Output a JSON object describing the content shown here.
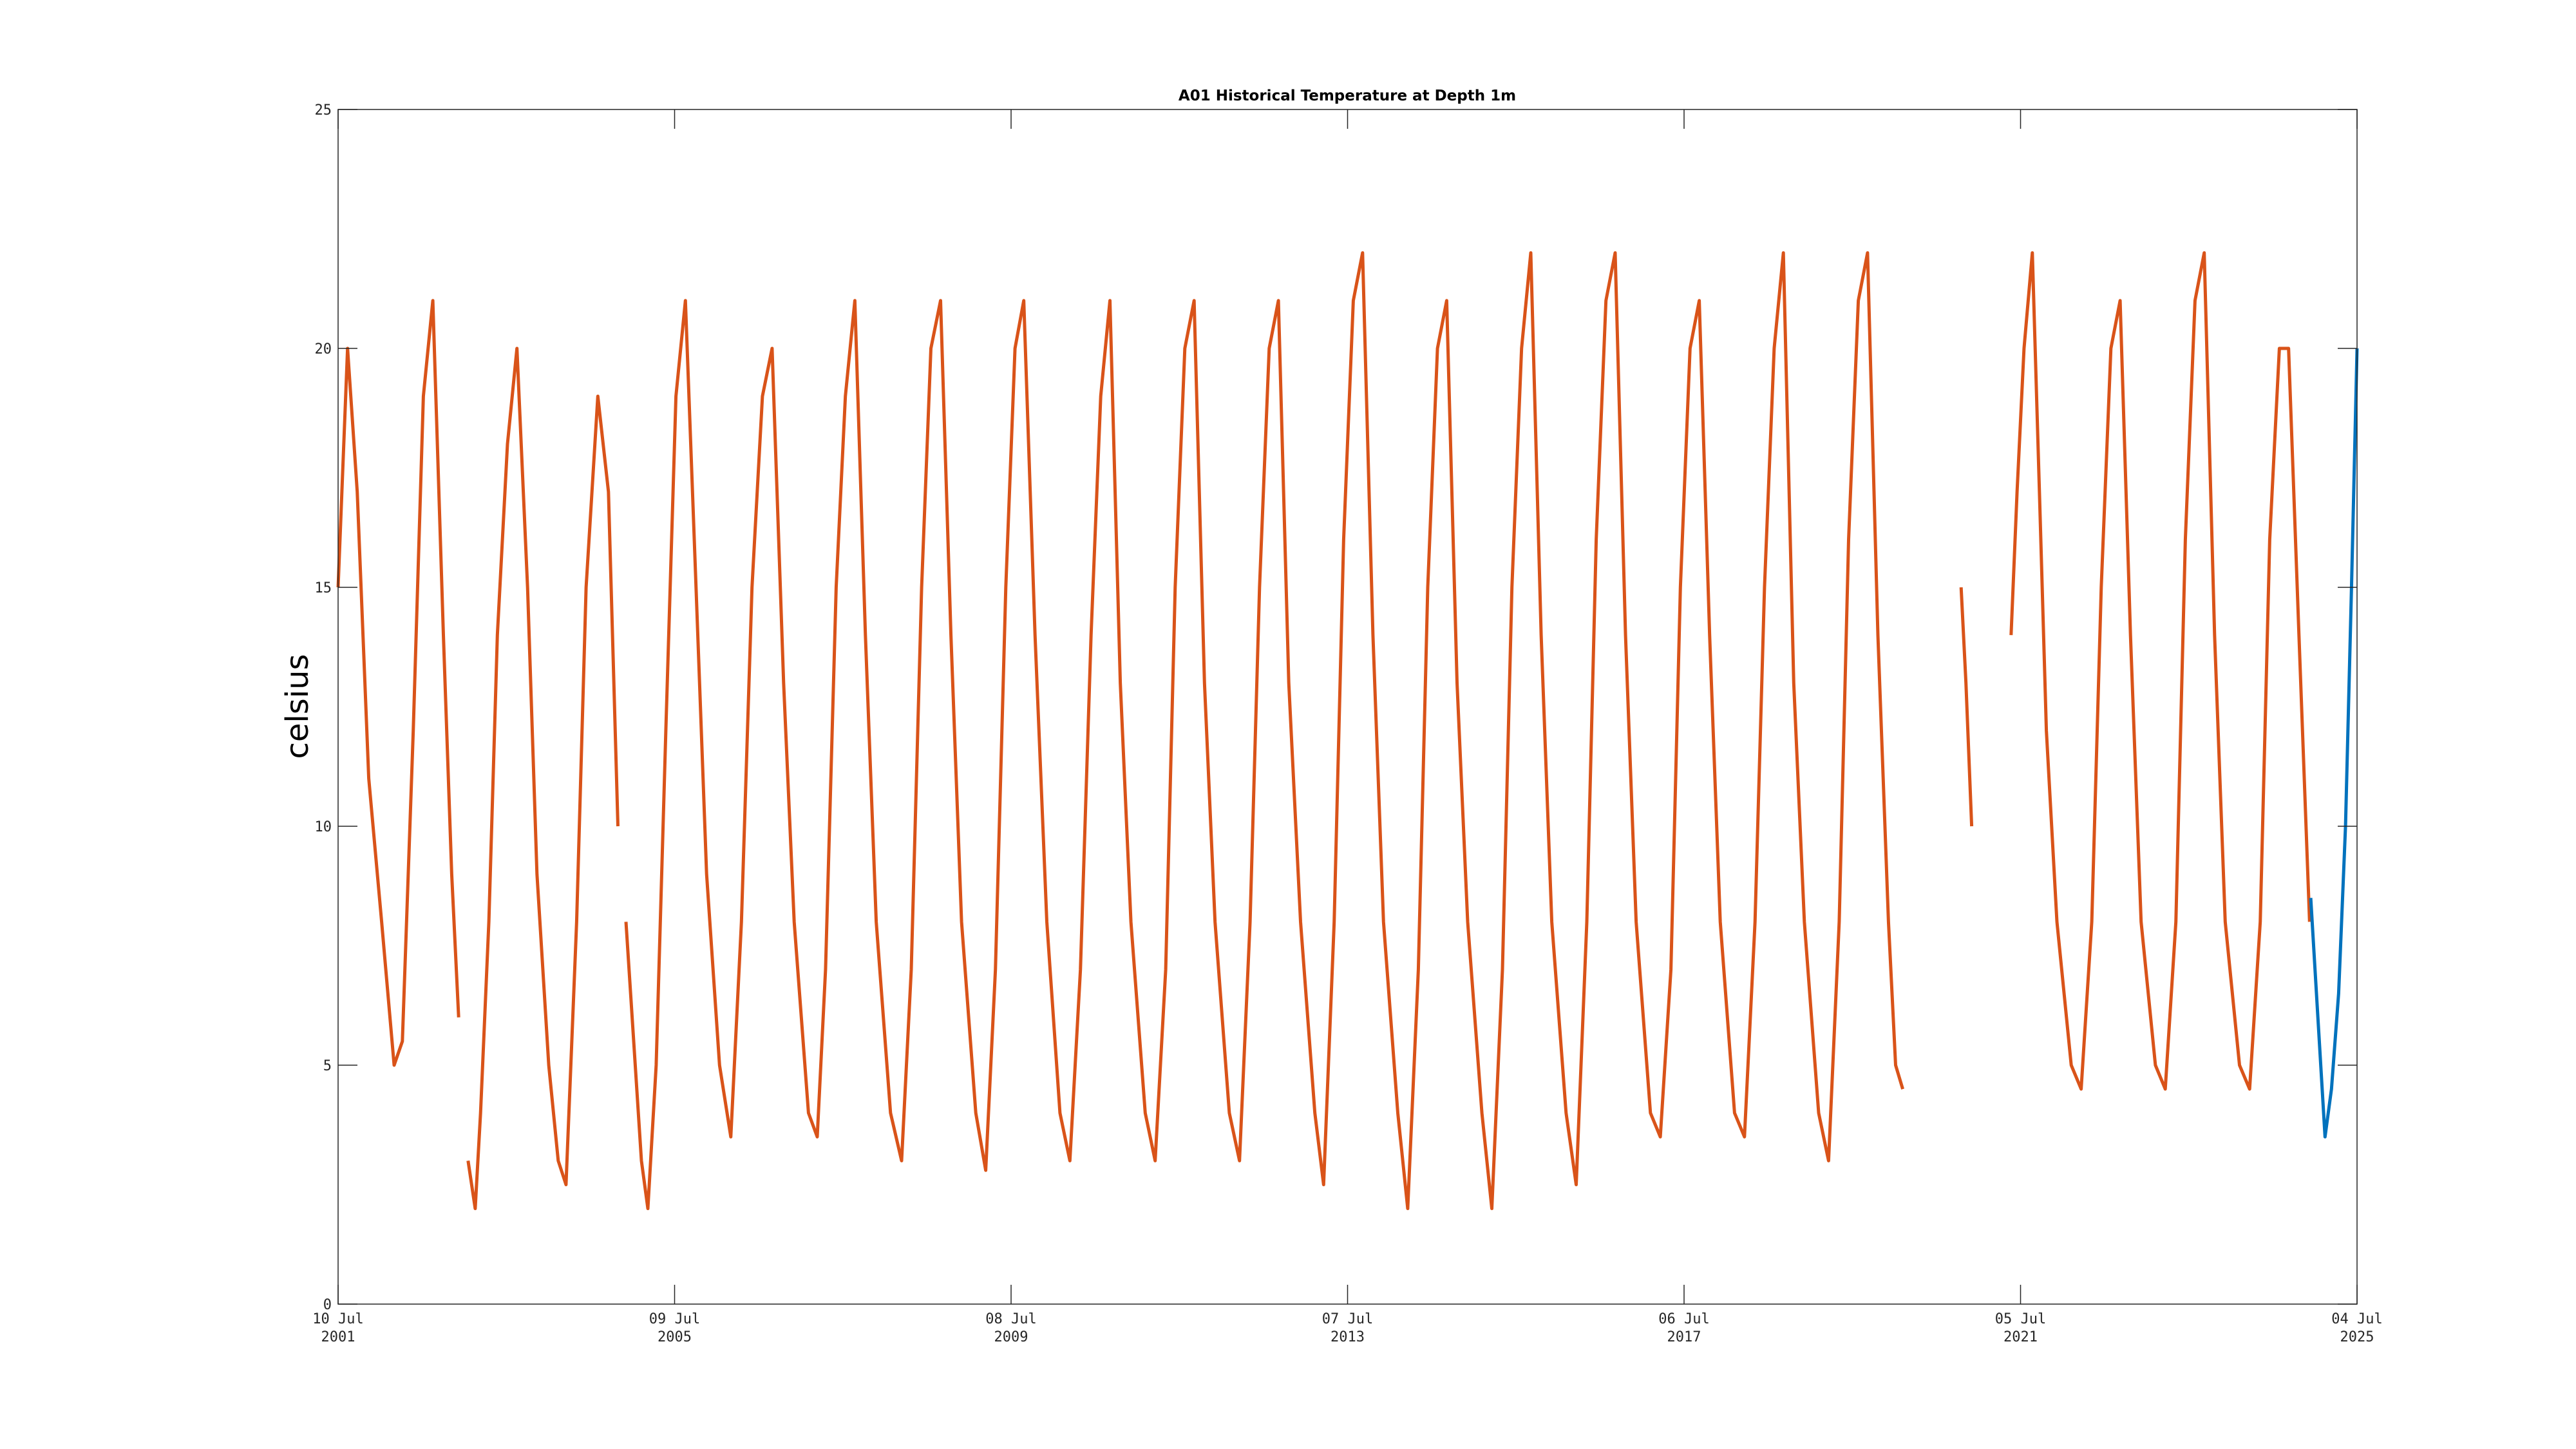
{
  "chart_data": {
    "type": "line",
    "title": "A01 Historical Temperature at Depth 1m",
    "xlabel": "",
    "ylabel": "celsius",
    "ylim": [
      0,
      25
    ],
    "yticks": [
      0,
      5,
      10,
      15,
      20,
      25
    ],
    "xlim": [
      "2001-07-10",
      "2025-07-04"
    ],
    "xticks": [
      {
        "date": "2001-07-10",
        "line1": "10 Jul",
        "line2": "2001"
      },
      {
        "date": "2005-07-09",
        "line1": "09 Jul",
        "line2": "2005"
      },
      {
        "date": "2009-07-08",
        "line1": "08 Jul",
        "line2": "2009"
      },
      {
        "date": "2013-07-07",
        "line1": "07 Jul",
        "line2": "2013"
      },
      {
        "date": "2017-07-06",
        "line1": "06 Jul",
        "line2": "2017"
      },
      {
        "date": "2021-07-05",
        "line1": "05 Jul",
        "line2": "2021"
      },
      {
        "date": "2025-07-04",
        "line1": "04 Jul",
        "line2": "2025"
      }
    ],
    "grid": false,
    "series": [
      {
        "color": "#D95319",
        "segments": [
          {
            "x": [
              "2001-07-10",
              "2001-08-20",
              "2001-10-01",
              "2001-11-20",
              "2002-01-15",
              "2002-03-10",
              "2002-04-15",
              "2002-06-01",
              "2002-07-15",
              "2002-08-25",
              "2002-10-10",
              "2002-11-15",
              "2002-12-15"
            ],
            "y": [
              15,
              20,
              17,
              11,
              8,
              5,
              5.5,
              12,
              19,
              21,
              14,
              9,
              6
            ]
          },
          {
            "x": [
              "2003-01-25",
              "2003-02-25",
              "2003-03-20",
              "2003-04-25",
              "2003-06-01",
              "2003-07-15",
              "2003-08-25",
              "2003-10-10",
              "2003-11-20",
              "2004-01-10",
              "2004-02-20",
              "2004-03-25",
              "2004-05-10",
              "2004-06-20",
              "2004-08-10",
              "2004-09-25",
              "2004-11-05"
            ],
            "y": [
              3,
              2,
              4,
              8,
              14,
              18,
              20,
              15,
              9,
              5,
              3,
              2.5,
              8,
              15,
              19,
              17,
              10
            ]
          },
          {
            "x": [
              "2004-12-10",
              "2005-02-15",
              "2005-03-15",
              "2005-04-20",
              "2005-06-01",
              "2005-07-15",
              "2005-08-25",
              "2005-10-10",
              "2005-11-25",
              "2006-01-20",
              "2006-03-10",
              "2006-04-25",
              "2006-06-10",
              "2006-07-25",
              "2006-09-05",
              "2006-10-25",
              "2006-12-10",
              "2007-02-10",
              "2007-03-20",
              "2007-04-25",
              "2007-06-10",
              "2007-07-20",
              "2007-08-30",
              "2007-10-15",
              "2007-12-01",
              "2008-02-01",
              "2008-03-20",
              "2008-05-01",
              "2008-06-15",
              "2008-07-25",
              "2008-09-05",
              "2008-10-20",
              "2008-12-05",
              "2009-02-05",
              "2009-03-20",
              "2009-05-01",
              "2009-06-15",
              "2009-07-25",
              "2009-09-01",
              "2009-10-20",
              "2009-12-10",
              "2010-02-05",
              "2010-03-20",
              "2010-05-05",
              "2010-06-20",
              "2010-08-01",
              "2010-09-10",
              "2010-10-25",
              "2010-12-10",
              "2011-02-10",
              "2011-03-25",
              "2011-05-10",
              "2011-06-20",
              "2011-08-01",
              "2011-09-10",
              "2011-10-25",
              "2011-12-10",
              "2012-02-10",
              "2012-03-25",
              "2012-05-10",
              "2012-06-20",
              "2012-08-01",
              "2012-09-10",
              "2012-10-25",
              "2012-12-15",
              "2013-02-15",
              "2013-03-25",
              "2013-05-10",
              "2013-06-20",
              "2013-08-01",
              "2013-09-10",
              "2013-10-25",
              "2013-12-10",
              "2014-02-10",
              "2014-03-25",
              "2014-05-10",
              "2014-06-20",
              "2014-08-01",
              "2014-09-10",
              "2014-10-25",
              "2014-12-10",
              "2015-02-10",
              "2015-03-25",
              "2015-05-10",
              "2015-06-20",
              "2015-08-01",
              "2015-09-10",
              "2015-10-25",
              "2015-12-10",
              "2016-02-10",
              "2016-03-25",
              "2016-05-10",
              "2016-06-20",
              "2016-08-01",
              "2016-09-10",
              "2016-10-25",
              "2016-12-10",
              "2017-02-10",
              "2017-03-25",
              "2017-05-10",
              "2017-06-20",
              "2017-08-01",
              "2017-09-10",
              "2017-10-25",
              "2017-12-10",
              "2018-02-10",
              "2018-03-25",
              "2018-05-10",
              "2018-06-20",
              "2018-08-01",
              "2018-09-10",
              "2018-10-25",
              "2018-12-10",
              "2019-02-10",
              "2019-03-25",
              "2019-05-10",
              "2019-06-20",
              "2019-08-01",
              "2019-09-10",
              "2019-10-25",
              "2019-12-10",
              "2020-01-10",
              "2020-02-10"
            ],
            "y": [
              8,
              3,
              2,
              5,
              12,
              19,
              21,
              15,
              9,
              5,
              3.5,
              8,
              15,
              19,
              20,
              13,
              8,
              4,
              3.5,
              7,
              15,
              19,
              21,
              14,
              8,
              4,
              3,
              7,
              15,
              20,
              21,
              14,
              8,
              4,
              2.8,
              7,
              15,
              20,
              21,
              14,
              8,
              4,
              3,
              7,
              14,
              19,
              21,
              13,
              8,
              4,
              3,
              7,
              15,
              20,
              21,
              13,
              8,
              4,
              3,
              8,
              15,
              20,
              21,
              13,
              8,
              4,
              2.5,
              8,
              16,
              21,
              22,
              14,
              8,
              4,
              2,
              7,
              15,
              20,
              21,
              13,
              8,
              4,
              2,
              7,
              15,
              20,
              22,
              14,
              8,
              4,
              2.5,
              8,
              16,
              21,
              22,
              14,
              8,
              4,
              3.5,
              7,
              15,
              20,
              21,
              14,
              8,
              4,
              3.5,
              8,
              15,
              20,
              22,
              13,
              8,
              4,
              3,
              8,
              16,
              21,
              22,
              14,
              8,
              5,
              4.5
            ]
          },
          {
            "x": [
              "2020-10-20",
              "2020-11-10",
              "2020-12-05"
            ],
            "y": [
              15,
              13,
              10
            ]
          },
          {
            "x": [
              "2021-05-25",
              "2021-06-20",
              "2021-07-20",
              "2021-08-25",
              "2021-09-25",
              "2021-10-25",
              "2021-12-10",
              "2022-02-10",
              "2022-03-25",
              "2022-05-10",
              "2022-06-20",
              "2022-08-01",
              "2022-09-10",
              "2022-10-25",
              "2022-12-10",
              "2023-02-10",
              "2023-03-25",
              "2023-05-10",
              "2023-06-20",
              "2023-08-01",
              "2023-09-10",
              "2023-10-25",
              "2023-12-10",
              "2024-02-10",
              "2024-03-25",
              "2024-05-10",
              "2024-06-20",
              "2024-08-01",
              "2024-09-10",
              "2024-10-25",
              "2024-12-10"
            ],
            "y": [
              14,
              17,
              20,
              22,
              17,
              12,
              8,
              5,
              4.5,
              8,
              15,
              20,
              21,
              14,
              8,
              5,
              4.5,
              8,
              16,
              21,
              22,
              14,
              8,
              5,
              4.5,
              8,
              16,
              20,
              20,
              14,
              8
            ]
          }
        ]
      },
      {
        "color": "#0072BD",
        "segments": [
          {
            "x": [
              "2024-12-15",
              "2025-01-15",
              "2025-02-15",
              "2025-03-15",
              "2025-04-15",
              "2025-05-15",
              "2025-06-10",
              "2025-07-04"
            ],
            "y": [
              8.5,
              6,
              3.5,
              4.5,
              6.5,
              10,
              15,
              20
            ]
          }
        ]
      }
    ]
  }
}
